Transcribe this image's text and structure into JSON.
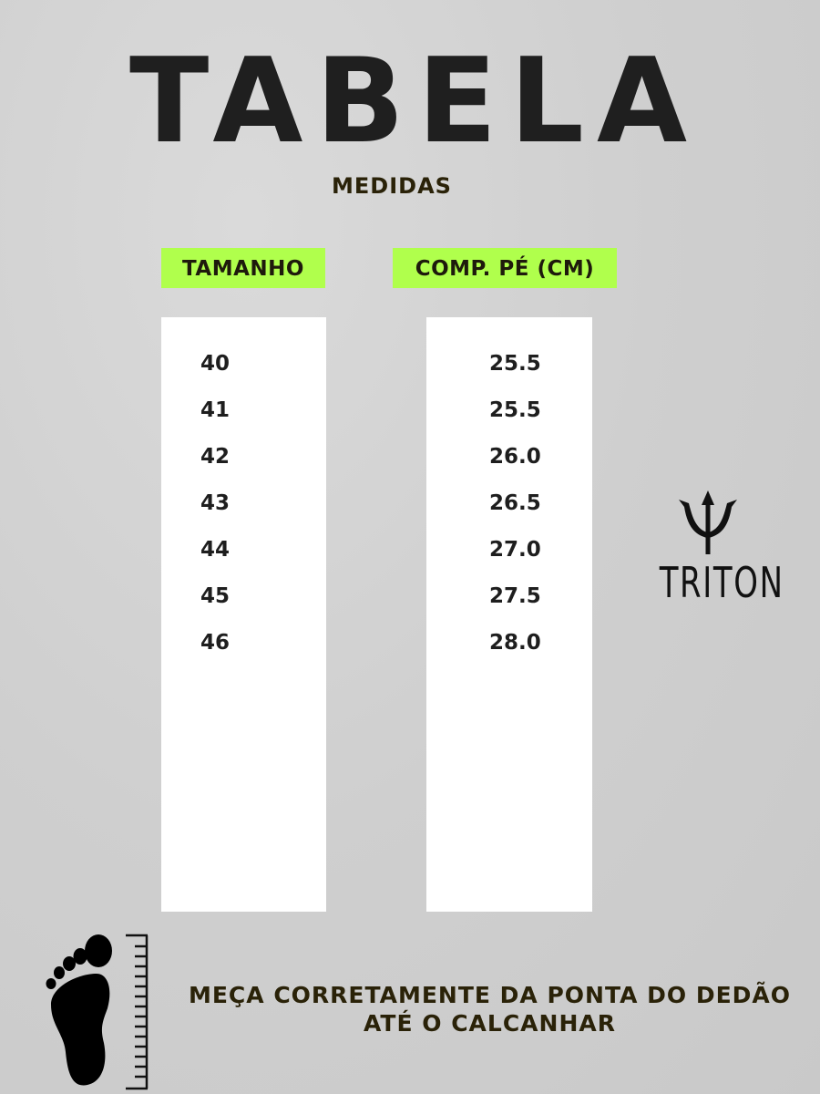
{
  "title": "TABELA",
  "subtitle": "MEDIDAS",
  "headers": {
    "size": "TAMANHO",
    "length": "COMP. PÉ (CM)"
  },
  "rows": [
    {
      "size": "40",
      "length": "25.5"
    },
    {
      "size": "41",
      "length": "25.5"
    },
    {
      "size": "42",
      "length": "26.0"
    },
    {
      "size": "43",
      "length": "26.5"
    },
    {
      "size": "44",
      "length": "27.0"
    },
    {
      "size": "45",
      "length": "27.5"
    },
    {
      "size": "46",
      "length": "28.0"
    }
  ],
  "brand": {
    "name": "TRITON",
    "icon": "trident-icon"
  },
  "instruction": {
    "line1": "MEÇA CORRETAMENTE DA PONTA DO DEDÃO",
    "line2": "ATÉ O CALCANHAR"
  },
  "icons": {
    "foot": "footprint-icon",
    "ruler": "ruler-icon"
  },
  "colors": {
    "header_highlight": "#b0ff4c",
    "text": "#1e1a0c"
  }
}
